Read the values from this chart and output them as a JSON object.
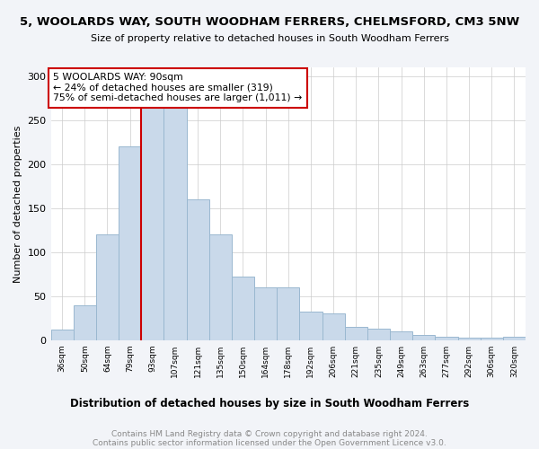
{
  "title": "5, WOOLARDS WAY, SOUTH WOODHAM FERRERS, CHELMSFORD, CM3 5NW",
  "subtitle": "Size of property relative to detached houses in South Woodham Ferrers",
  "xlabel": "Distribution of detached houses by size in South Woodham Ferrers",
  "ylabel": "Number of detached properties",
  "categories": [
    "36sqm",
    "50sqm",
    "64sqm",
    "79sqm",
    "93sqm",
    "107sqm",
    "121sqm",
    "135sqm",
    "150sqm",
    "164sqm",
    "178sqm",
    "192sqm",
    "206sqm",
    "221sqm",
    "235sqm",
    "249sqm",
    "263sqm",
    "277sqm",
    "292sqm",
    "306sqm",
    "320sqm"
  ],
  "values": [
    12,
    40,
    120,
    220,
    280,
    265,
    160,
    120,
    72,
    60,
    60,
    32,
    30,
    15,
    13,
    10,
    6,
    4,
    3,
    3,
    4
  ],
  "bar_color": "#c9d9ea",
  "bar_edge_color": "#9ab8d0",
  "annotation_box_text": [
    "5 WOOLARDS WAY: 90sqm",
    "← 24% of detached houses are smaller (319)",
    "75% of semi-detached houses are larger (1,011) →"
  ],
  "vline_color": "#cc0000",
  "box_edge_color": "#cc0000",
  "footer_line1": "Contains HM Land Registry data © Crown copyright and database right 2024.",
  "footer_line2": "Contains public sector information licensed under the Open Government Licence v3.0.",
  "ylim": [
    0,
    310
  ],
  "background_color": "#f2f4f8",
  "plot_bg_color": "#ffffff"
}
